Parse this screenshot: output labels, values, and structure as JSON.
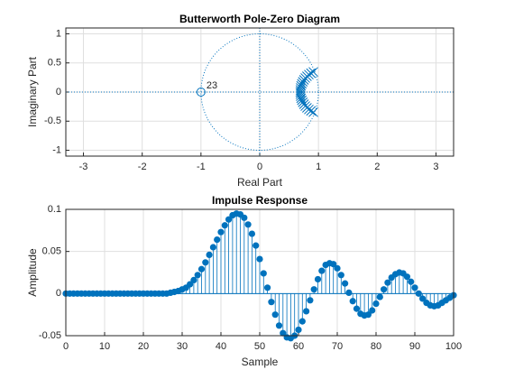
{
  "chart_data": [
    {
      "type": "pole-zero",
      "title": "Butterworth Pole-Zero Diagram",
      "xlabel": "Real Part",
      "ylabel": "Imaginary Part",
      "xlim": [
        -3.3,
        3.3
      ],
      "xticks": [
        -3,
        -2,
        -1,
        0,
        1,
        2,
        3
      ],
      "ylim": [
        -1.1,
        1.1
      ],
      "yticks": [
        -1,
        -0.5,
        0,
        0.5,
        1
      ],
      "grid": true,
      "color": "#0072bd",
      "zeros": {
        "x": [
          -1
        ],
        "y": [
          0
        ]
      },
      "zero_multiplicity": [
        23
      ],
      "poles": {
        "x": [
          0.913,
          0.872,
          0.836,
          0.804,
          0.776,
          0.753,
          0.733,
          0.717,
          0.705,
          0.697,
          0.692,
          0.69,
          0.692,
          0.697,
          0.705,
          0.717,
          0.733,
          0.753,
          0.776,
          0.804,
          0.836,
          0.872,
          0.913
        ],
        "y": [
          0.346,
          0.324,
          0.299,
          0.271,
          0.241,
          0.209,
          0.176,
          0.142,
          0.107,
          0.071,
          0.036,
          0,
          -0.036,
          -0.071,
          -0.107,
          -0.142,
          -0.176,
          -0.209,
          -0.241,
          -0.271,
          -0.299,
          -0.324,
          -0.346
        ]
      }
    },
    {
      "type": "stem",
      "title": "Impulse Response",
      "xlabel": "Sample",
      "ylabel": "Amplitude",
      "xlim": [
        0,
        100
      ],
      "xticks": [
        0,
        10,
        20,
        30,
        40,
        50,
        60,
        70,
        80,
        90,
        100
      ],
      "ylim": [
        -0.05,
        0.1
      ],
      "yticks": [
        -0.05,
        0,
        0.05,
        0.1
      ],
      "grid": true,
      "color": "#0072bd",
      "x": [
        0,
        1,
        2,
        3,
        4,
        5,
        6,
        7,
        8,
        9,
        10,
        11,
        12,
        13,
        14,
        15,
        16,
        17,
        18,
        19,
        20,
        21,
        22,
        23,
        24,
        25,
        26,
        27,
        28,
        29,
        30,
        31,
        32,
        33,
        34,
        35,
        36,
        37,
        38,
        39,
        40,
        41,
        42,
        43,
        44,
        45,
        46,
        47,
        48,
        49,
        50,
        51,
        52,
        53,
        54,
        55,
        56,
        57,
        58,
        59,
        60,
        61,
        62,
        63,
        64,
        65,
        66,
        67,
        68,
        69,
        70,
        71,
        72,
        73,
        74,
        75,
        76,
        77,
        78,
        79,
        80,
        81,
        82,
        83,
        84,
        85,
        86,
        87,
        88,
        89,
        90,
        91,
        92,
        93,
        94,
        95,
        96,
        97,
        98,
        99,
        100
      ],
      "values": [
        0,
        0,
        0,
        0,
        0,
        0,
        0,
        0,
        0,
        0,
        0,
        0,
        0,
        0,
        0,
        0,
        0,
        0,
        0,
        0,
        0,
        0,
        0,
        0,
        0,
        0,
        0,
        0.001,
        0.002,
        0.003,
        0.005,
        0.007,
        0.011,
        0.016,
        0.022,
        0.029,
        0.037,
        0.046,
        0.055,
        0.064,
        0.073,
        0.081,
        0.088,
        0.093,
        0.095,
        0.094,
        0.09,
        0.082,
        0.071,
        0.057,
        0.041,
        0.024,
        0.007,
        -0.01,
        -0.025,
        -0.038,
        -0.047,
        -0.052,
        -0.053,
        -0.05,
        -0.043,
        -0.033,
        -0.021,
        -0.008,
        0.005,
        0.017,
        0.027,
        0.034,
        0.036,
        0.035,
        0.03,
        0.022,
        0.012,
        0.001,
        -0.009,
        -0.018,
        -0.024,
        -0.026,
        -0.025,
        -0.02,
        -0.012,
        -0.004,
        0.005,
        0.013,
        0.019,
        0.023,
        0.025,
        0.024,
        0.02,
        0.014,
        0.007,
        0,
        -0.006,
        -0.011,
        -0.014,
        -0.015,
        -0.014,
        -0.011,
        -0.008,
        -0.005,
        -0.002
      ]
    }
  ]
}
